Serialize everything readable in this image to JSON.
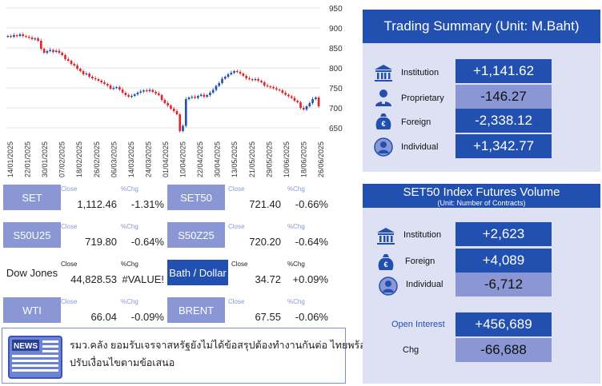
{
  "chart_data": {
    "type": "candlestick",
    "y_ticks": [
      "650",
      "700",
      "750",
      "800",
      "850",
      "900",
      "950"
    ],
    "ylim": [
      650,
      950
    ],
    "x_ticks": [
      "14/01/2025",
      "22/01/2025",
      "30/01/2025",
      "07/02/2025",
      "18/02/2025",
      "26/02/2025",
      "06/03/2025",
      "14/03/2025",
      "24/03/2025",
      "01/04/2025",
      "10/04/2025",
      "22/04/2025",
      "30/04/2025",
      "13/05/2025",
      "21/05/2025",
      "29/05/2025",
      "10/06/2025",
      "18/06/2025",
      "26/06/2025"
    ],
    "closes": [
      880,
      878,
      882,
      880,
      884,
      880,
      878,
      876,
      872,
      874,
      868,
      848,
      838,
      842,
      845,
      840,
      843,
      838,
      832,
      822,
      818,
      810,
      806,
      798,
      792,
      784,
      786,
      778,
      774,
      772,
      768,
      764,
      760,
      756,
      748,
      750,
      752,
      746,
      738,
      732,
      728,
      730,
      734,
      738,
      741,
      744,
      742,
      745,
      740,
      736,
      732,
      720,
      712,
      706,
      698,
      692,
      684,
      642,
      655,
      722,
      726,
      728,
      725,
      730,
      733,
      728,
      732,
      738,
      745,
      755,
      762,
      773,
      778,
      784,
      788,
      792,
      790,
      786,
      780,
      774,
      772,
      770,
      772,
      768,
      764,
      756,
      754,
      752,
      749,
      746,
      744,
      738,
      733,
      729,
      725,
      718,
      714,
      700,
      696,
      704,
      712,
      722,
      726,
      704
    ],
    "colors": {
      "up": "#2250b0",
      "down": "#e0262d",
      "grid": "#e6e6e6"
    }
  },
  "tiles": [
    {
      "name": "SET",
      "label_a": "Close",
      "label_b": "%Chg",
      "value": "1,112.46",
      "change": "-1.31%"
    },
    {
      "name": "SET50",
      "label_a": "Close",
      "label_b": "%Chg",
      "value": "721.40",
      "change": "-0.66%"
    },
    {
      "name": "S50U25",
      "label_a": "Close",
      "label_b": "%Chg",
      "value": "719.80",
      "change": "-0.64%"
    },
    {
      "name": "S50Z25",
      "label_a": "Close",
      "label_b": "%Chg",
      "value": "720.20",
      "change": "-0.64%"
    },
    {
      "name": "Dow Jones",
      "label_a": "Close",
      "label_b": "%Chg",
      "value": "44,828.53",
      "change": "#VALUE!"
    },
    {
      "name": "Bath / Dollar",
      "label_a": "Close",
      "label_b": "%Chg",
      "value": "34.72",
      "change": "+0.09%"
    },
    {
      "name": "WTI",
      "label_a": "Close",
      "label_b": "%Chg",
      "value": "66.04",
      "change": "-0.09%"
    },
    {
      "name": "BRENT",
      "label_a": "Close",
      "label_b": "%Chg",
      "value": "67.55",
      "change": "-0.06%"
    }
  ],
  "news": {
    "icon_text": "NEWS",
    "line1": "รมว.คลัง ยอมรับเจรจาสหรัฐยังไม่ได้ข้อสรุปต้องทำงานกันต่อ  ไทยพร้อม",
    "line2": "ปรับเงื่อนไขตามข้อเสนอ"
  },
  "trading_summary": {
    "title": "Trading Summary (Unit: M.Baht)",
    "rows": [
      {
        "icon": "institution-icon",
        "label": "Institution",
        "value": "+1,141.62"
      },
      {
        "icon": "proprietary-icon",
        "label": "Proprietary",
        "value": "-146.27"
      },
      {
        "icon": "foreign-icon",
        "label": "Foreign",
        "value": "-2,338.12"
      },
      {
        "icon": "individual-icon",
        "label": "Individual",
        "value": "+1,342.77"
      }
    ]
  },
  "futures": {
    "title": "SET50 Index Futures Volume",
    "subtitle": "(Unit: Number of Contracts)",
    "rows": [
      {
        "icon": "institution-icon",
        "label": "Institution",
        "value": "+2,623"
      },
      {
        "icon": "foreign-icon",
        "label": "Foreign",
        "value": "+4,089"
      },
      {
        "icon": "individual-icon",
        "label": "Individual",
        "value": "-6,712"
      }
    ],
    "open_interest_label": "Open Interest",
    "open_interest_value": "+456,689",
    "chg_label": "Chg",
    "chg_value": "-66,688"
  }
}
